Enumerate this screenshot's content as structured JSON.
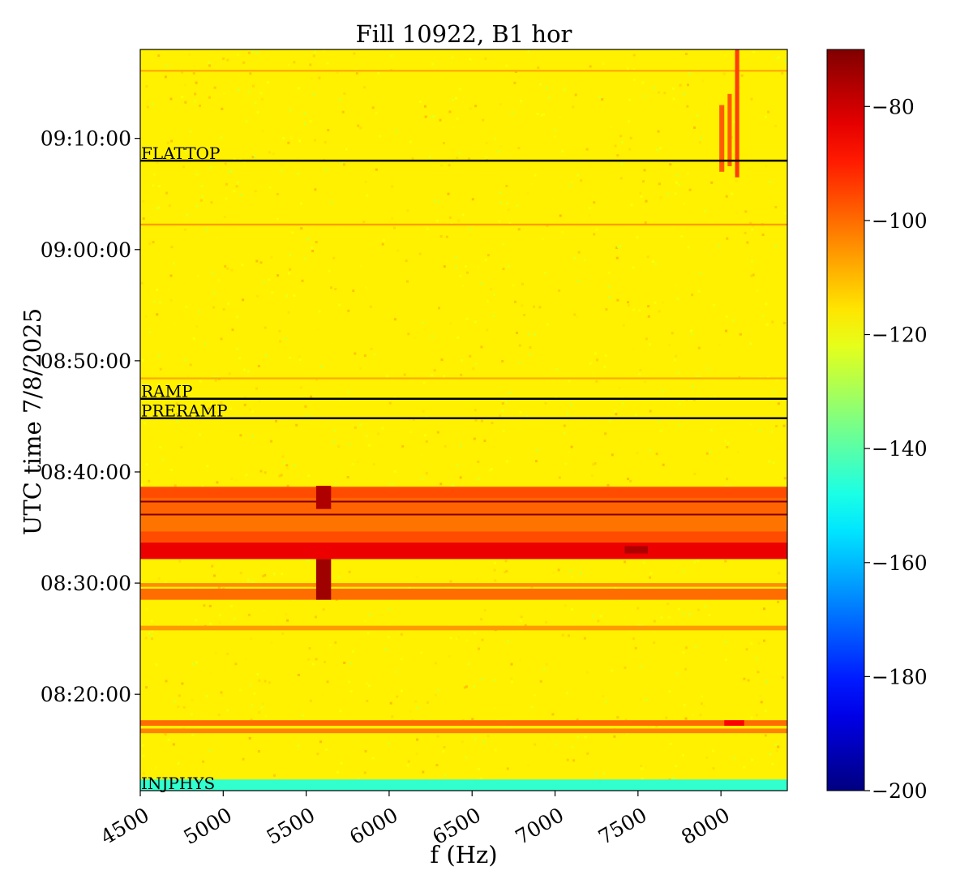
{
  "chart_data": {
    "type": "heatmap",
    "title": "Fill 10922, B1 hor",
    "xlabel": "f (Hz)",
    "ylabel": "UTC time 7/8/2025",
    "xlim": [
      4500,
      8400
    ],
    "ylim": [
      "08:11:20",
      "09:18:00"
    ],
    "x_ticks": [
      4500,
      5000,
      5500,
      6000,
      6500,
      7000,
      7500,
      8000
    ],
    "y_ticks": [
      "08:20:00",
      "08:30:00",
      "08:40:00",
      "08:50:00",
      "09:00:00",
      "09:10:00"
    ],
    "colorbar": {
      "colormap": "jet",
      "range": [
        -200,
        -70
      ],
      "ticks": [
        -80,
        -100,
        -120,
        -140,
        -160,
        -180,
        -200
      ]
    },
    "background_level": -117,
    "phase_markers": [
      {
        "label": "INJPHYS",
        "time": "08:11:20"
      },
      {
        "label": "PRERAMP",
        "time": "08:44:50"
      },
      {
        "label": "RAMP",
        "time": "08:46:35"
      },
      {
        "label": "FLATTOP",
        "time": "09:08:00"
      }
    ],
    "horizontal_features": [
      {
        "from": "08:11:20",
        "to": "08:12:20",
        "level": -145
      },
      {
        "from": "08:16:30",
        "to": "08:16:55",
        "level": -103
      },
      {
        "from": "08:17:10",
        "to": "08:17:40",
        "level": -100
      },
      {
        "from": "08:25:45",
        "to": "08:26:10",
        "level": -106
      },
      {
        "from": "08:28:30",
        "to": "08:29:30",
        "level": -100
      },
      {
        "from": "08:29:40",
        "to": "08:30:00",
        "level": -104
      },
      {
        "from": "08:32:10",
        "to": "08:33:40",
        "level": -84
      },
      {
        "from": "08:33:40",
        "to": "08:34:40",
        "level": -96
      },
      {
        "from": "08:34:40",
        "to": "08:36:10",
        "level": -101
      },
      {
        "from": "08:36:10",
        "to": "08:37:40",
        "level": -99
      },
      {
        "from": "08:37:40",
        "to": "08:38:40",
        "level": -96
      },
      {
        "from": "08:48:20",
        "to": "08:48:30",
        "level": -108
      },
      {
        "from": "09:02:10",
        "to": "09:02:20",
        "level": -106
      },
      {
        "from": "09:16:00",
        "to": "09:16:10",
        "level": -108
      }
    ],
    "dark_lines": [
      {
        "time": "08:36:10",
        "level": -70
      },
      {
        "time": "08:37:20",
        "level": -70
      }
    ],
    "localized_features": [
      {
        "f_from": 5560,
        "f_to": 5650,
        "from": "08:28:30",
        "to": "08:32:10",
        "level": -74
      },
      {
        "f_from": 5560,
        "f_to": 5650,
        "from": "08:36:40",
        "to": "08:38:45",
        "level": -76
      },
      {
        "f_from": 7420,
        "f_to": 7560,
        "from": "08:32:40",
        "to": "08:33:20",
        "level": -76
      },
      {
        "f_from": 8020,
        "f_to": 8140,
        "from": "08:17:10",
        "to": "08:17:40",
        "level": -86
      },
      {
        "f_from": 7990,
        "f_to": 8020,
        "from": "09:07:00",
        "to": "09:13:00",
        "level": -98
      },
      {
        "f_from": 8040,
        "f_to": 8065,
        "from": "09:07:30",
        "to": "09:14:00",
        "level": -98
      },
      {
        "f_from": 8085,
        "f_to": 8110,
        "from": "09:06:30",
        "to": "09:18:00",
        "level": -94
      }
    ]
  }
}
